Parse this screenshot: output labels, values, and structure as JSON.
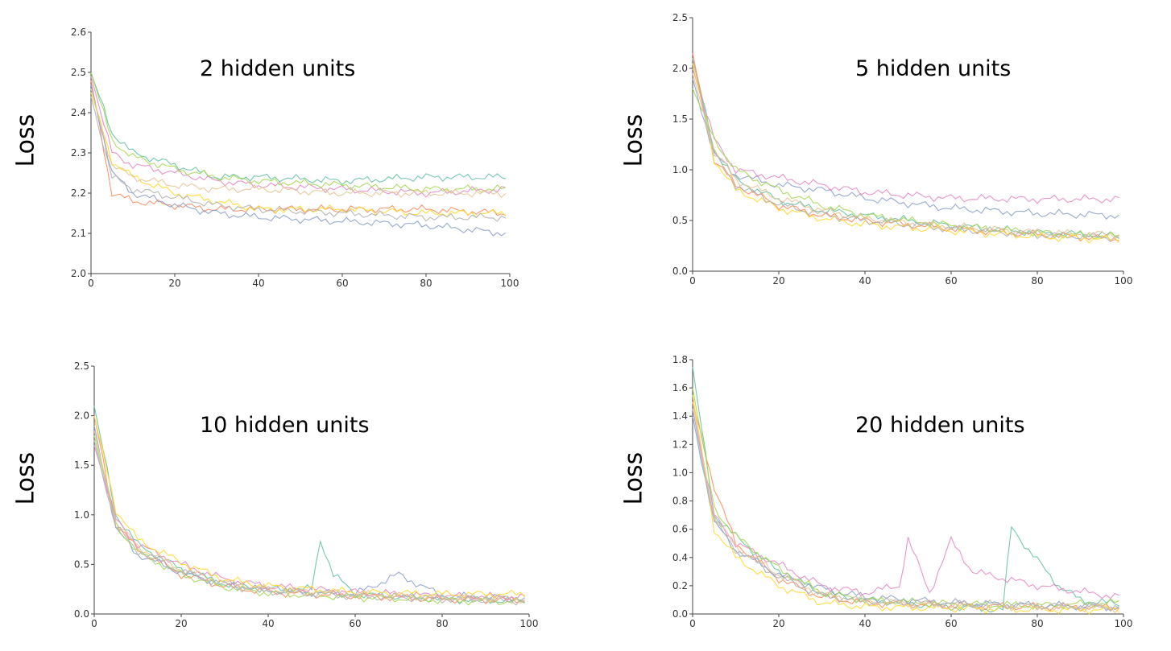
{
  "series_colors": [
    "#66c2a5",
    "#fc8d62",
    "#8da0cb",
    "#e78ac3",
    "#a6d854",
    "#ffd92f",
    "#e5c494",
    "#b3b3b3",
    "#d9a35f",
    "#9bb6e0"
  ],
  "chart_data": [
    {
      "type": "line",
      "title": "2 hidden units",
      "ylabel": "Loss",
      "xlim": [
        0,
        100
      ],
      "ylim": [
        2.0,
        2.6
      ],
      "xticks": [
        "0",
        "20",
        "40",
        "60",
        "80",
        "100"
      ],
      "yticks": [
        "2.0",
        "2.1",
        "2.2",
        "2.3",
        "2.4",
        "2.5",
        "2.6"
      ],
      "series": [
        {
          "x": [
            0,
            5,
            10,
            20,
            30,
            40,
            60,
            80,
            99
          ],
          "values": [
            2.5,
            2.35,
            2.3,
            2.27,
            2.24,
            2.24,
            2.23,
            2.24,
            2.24
          ]
        },
        {
          "x": [
            0,
            5,
            10,
            20,
            30,
            40,
            60,
            80,
            99
          ],
          "values": [
            2.48,
            2.2,
            2.18,
            2.17,
            2.16,
            2.16,
            2.16,
            2.16,
            2.15
          ]
        },
        {
          "x": [
            0,
            5,
            10,
            20,
            30,
            40,
            60,
            80,
            99
          ],
          "values": [
            2.47,
            2.25,
            2.2,
            2.17,
            2.15,
            2.14,
            2.13,
            2.12,
            2.1
          ]
        },
        {
          "x": [
            0,
            5,
            10,
            20,
            30,
            40,
            60,
            80,
            99
          ],
          "values": [
            2.49,
            2.3,
            2.27,
            2.25,
            2.23,
            2.22,
            2.21,
            2.2,
            2.21
          ]
        },
        {
          "x": [
            0,
            5,
            10,
            20,
            30,
            40,
            60,
            80,
            99
          ],
          "values": [
            2.5,
            2.33,
            2.29,
            2.26,
            2.24,
            2.23,
            2.22,
            2.21,
            2.21
          ]
        },
        {
          "x": [
            0,
            5,
            10,
            20,
            30,
            40,
            60,
            80,
            99
          ],
          "values": [
            2.45,
            2.28,
            2.24,
            2.2,
            2.18,
            2.16,
            2.16,
            2.15,
            2.15
          ]
        },
        {
          "x": [
            0,
            5,
            10,
            20,
            30,
            40,
            60,
            80,
            99
          ],
          "values": [
            2.46,
            2.27,
            2.24,
            2.22,
            2.21,
            2.21,
            2.2,
            2.2,
            2.2
          ]
        },
        {
          "x": [
            0,
            5,
            10,
            20,
            30,
            40,
            60,
            80,
            99
          ],
          "values": [
            2.44,
            2.24,
            2.21,
            2.19,
            2.17,
            2.16,
            2.15,
            2.14,
            2.14
          ]
        }
      ]
    },
    {
      "type": "line",
      "title": "5 hidden units",
      "ylabel": "Loss",
      "xlim": [
        0,
        100
      ],
      "ylim": [
        0.0,
        2.5
      ],
      "xticks": [
        "0",
        "20",
        "40",
        "60",
        "80",
        "100"
      ],
      "yticks": [
        "0.0",
        "0.5",
        "1.0",
        "1.5",
        "2.0",
        "2.5"
      ],
      "series": [
        {
          "x": [
            0,
            5,
            10,
            20,
            30,
            40,
            60,
            80,
            99
          ],
          "values": [
            2.1,
            1.2,
            0.9,
            0.7,
            0.6,
            0.55,
            0.45,
            0.38,
            0.35
          ]
        },
        {
          "x": [
            0,
            5,
            10,
            20,
            30,
            40,
            60,
            80,
            99
          ],
          "values": [
            2.15,
            1.1,
            0.85,
            0.65,
            0.55,
            0.5,
            0.42,
            0.36,
            0.32
          ]
        },
        {
          "x": [
            0,
            5,
            10,
            20,
            30,
            40,
            60,
            80,
            99
          ],
          "values": [
            1.9,
            1.15,
            0.95,
            0.85,
            0.8,
            0.72,
            0.62,
            0.57,
            0.55
          ]
        },
        {
          "x": [
            0,
            5,
            10,
            20,
            30,
            40,
            60,
            80,
            99
          ],
          "values": [
            2.0,
            1.3,
            1.0,
            0.92,
            0.85,
            0.78,
            0.72,
            0.71,
            0.71
          ]
        },
        {
          "x": [
            0,
            5,
            10,
            20,
            30,
            40,
            60,
            80,
            99
          ],
          "values": [
            1.8,
            1.3,
            1.0,
            0.8,
            0.65,
            0.55,
            0.45,
            0.38,
            0.34
          ]
        },
        {
          "x": [
            0,
            5,
            10,
            20,
            30,
            40,
            60,
            80,
            99
          ],
          "values": [
            2.05,
            1.1,
            0.8,
            0.62,
            0.52,
            0.46,
            0.4,
            0.34,
            0.31
          ]
        },
        {
          "x": [
            0,
            5,
            10,
            20,
            30,
            40,
            60,
            80,
            99
          ],
          "values": [
            1.95,
            1.2,
            0.9,
            0.72,
            0.6,
            0.52,
            0.44,
            0.38,
            0.36
          ]
        },
        {
          "x": [
            0,
            5,
            10,
            20,
            30,
            40,
            60,
            80,
            99
          ],
          "values": [
            2.1,
            1.15,
            0.85,
            0.66,
            0.56,
            0.5,
            0.42,
            0.36,
            0.33
          ]
        }
      ]
    },
    {
      "type": "line",
      "title": "10 hidden units",
      "ylabel": "Loss",
      "xlim": [
        0,
        100
      ],
      "ylim": [
        0.0,
        2.5
      ],
      "xticks": [
        "0",
        "20",
        "40",
        "60",
        "80",
        "100"
      ],
      "yticks": [
        "0.0",
        "0.5",
        "1.0",
        "1.5",
        "2.0",
        "2.5"
      ],
      "series": [
        {
          "x": [
            0,
            5,
            10,
            20,
            30,
            40,
            50,
            52,
            55,
            60,
            80,
            99
          ],
          "values": [
            2.1,
            1.0,
            0.7,
            0.45,
            0.3,
            0.25,
            0.25,
            0.75,
            0.4,
            0.2,
            0.15,
            0.13
          ]
        },
        {
          "x": [
            0,
            5,
            10,
            20,
            30,
            40,
            60,
            80,
            99
          ],
          "values": [
            2.0,
            0.9,
            0.65,
            0.4,
            0.28,
            0.22,
            0.18,
            0.15,
            0.14
          ]
        },
        {
          "x": [
            0,
            5,
            10,
            20,
            30,
            40,
            60,
            70,
            80,
            99
          ],
          "values": [
            1.9,
            0.85,
            0.6,
            0.42,
            0.3,
            0.24,
            0.2,
            0.4,
            0.18,
            0.16
          ]
        },
        {
          "x": [
            0,
            5,
            10,
            20,
            30,
            40,
            60,
            80,
            99
          ],
          "values": [
            1.7,
            0.95,
            0.7,
            0.5,
            0.35,
            0.28,
            0.22,
            0.18,
            0.17
          ]
        },
        {
          "x": [
            0,
            5,
            10,
            20,
            30,
            40,
            60,
            80,
            99
          ],
          "values": [
            1.8,
            0.9,
            0.62,
            0.4,
            0.27,
            0.21,
            0.17,
            0.14,
            0.12
          ]
        },
        {
          "x": [
            0,
            5,
            10,
            20,
            30,
            40,
            60,
            80,
            99
          ],
          "values": [
            2.0,
            1.05,
            0.75,
            0.52,
            0.35,
            0.28,
            0.22,
            0.2,
            0.2
          ]
        },
        {
          "x": [
            0,
            5,
            10,
            20,
            30,
            40,
            60,
            80,
            99
          ],
          "values": [
            1.85,
            0.92,
            0.68,
            0.45,
            0.32,
            0.25,
            0.2,
            0.17,
            0.15
          ]
        },
        {
          "x": [
            0,
            5,
            10,
            20,
            30,
            40,
            60,
            80,
            99
          ],
          "values": [
            1.75,
            0.88,
            0.64,
            0.43,
            0.29,
            0.23,
            0.18,
            0.15,
            0.13
          ]
        }
      ]
    },
    {
      "type": "line",
      "title": "20 hidden units",
      "ylabel": "Loss",
      "xlim": [
        0,
        100
      ],
      "ylim": [
        0.0,
        1.8
      ],
      "xticks": [
        "0",
        "20",
        "40",
        "60",
        "80",
        "100"
      ],
      "yticks": [
        "0.0",
        "0.2",
        "0.4",
        "0.6",
        "0.8",
        "1.0",
        "1.2",
        "1.4",
        "1.6",
        "1.8"
      ],
      "series": [
        {
          "x": [
            0,
            5,
            10,
            20,
            30,
            40,
            60,
            72,
            74,
            78,
            85,
            90,
            99
          ],
          "values": [
            1.75,
            0.7,
            0.55,
            0.3,
            0.15,
            0.1,
            0.05,
            0.03,
            0.62,
            0.45,
            0.2,
            0.1,
            0.07
          ]
        },
        {
          "x": [
            0,
            5,
            10,
            20,
            30,
            40,
            60,
            80,
            99
          ],
          "values": [
            1.5,
            0.9,
            0.5,
            0.25,
            0.12,
            0.08,
            0.06,
            0.05,
            0.05
          ]
        },
        {
          "x": [
            0,
            5,
            10,
            20,
            30,
            40,
            60,
            80,
            99
          ],
          "values": [
            1.4,
            0.65,
            0.45,
            0.28,
            0.18,
            0.12,
            0.08,
            0.06,
            0.05
          ]
        },
        {
          "x": [
            0,
            5,
            10,
            20,
            30,
            40,
            48,
            50,
            55,
            60,
            65,
            80,
            99
          ],
          "values": [
            1.45,
            0.7,
            0.5,
            0.35,
            0.2,
            0.15,
            0.2,
            0.53,
            0.15,
            0.52,
            0.3,
            0.2,
            0.12
          ]
        },
        {
          "x": [
            0,
            5,
            10,
            20,
            30,
            40,
            60,
            80,
            99
          ],
          "values": [
            1.6,
            0.75,
            0.55,
            0.32,
            0.15,
            0.1,
            0.07,
            0.06,
            0.08
          ]
        },
        {
          "x": [
            0,
            5,
            10,
            20,
            30,
            40,
            60,
            80,
            99
          ],
          "values": [
            1.55,
            0.6,
            0.4,
            0.2,
            0.08,
            0.05,
            0.04,
            0.03,
            0.03
          ]
        },
        {
          "x": [
            0,
            5,
            10,
            20,
            30,
            40,
            60,
            80,
            99
          ],
          "values": [
            1.5,
            0.68,
            0.48,
            0.28,
            0.14,
            0.09,
            0.06,
            0.05,
            0.04
          ]
        },
        {
          "x": [
            0,
            5,
            10,
            20,
            30,
            40,
            60,
            80,
            99
          ],
          "values": [
            1.45,
            0.66,
            0.46,
            0.26,
            0.13,
            0.09,
            0.07,
            0.06,
            0.05
          ]
        }
      ]
    }
  ]
}
